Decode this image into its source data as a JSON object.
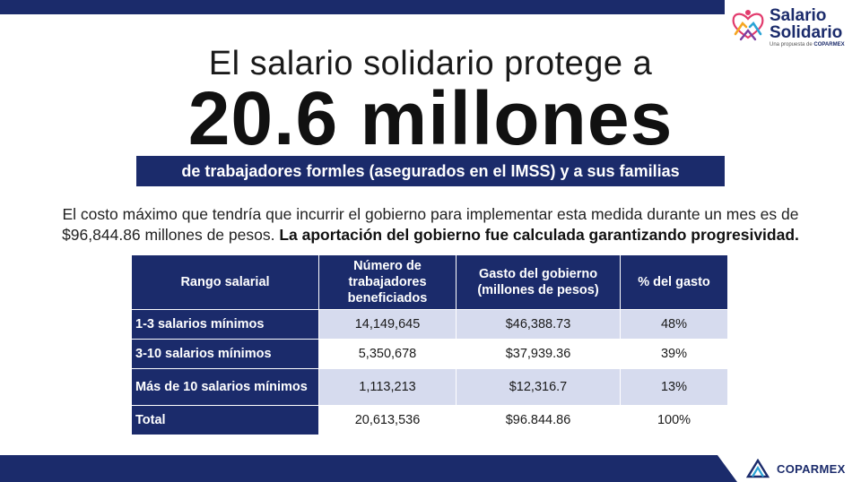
{
  "logo": {
    "title_line1": "Salario",
    "title_line2": "Solidario",
    "subtitle_prefix": "Una propuesta de",
    "subtitle_brand": "COPARMEX"
  },
  "headline": {
    "line1": "El salario solidario protege a",
    "line2": "20.6 millones",
    "band": "de trabajadores formles (asegurados en el IMSS) y a sus familias"
  },
  "body": {
    "text_regular": "El costo máximo que tendría que incurrir el gobierno para implementar esta medida durante un mes es de $96,844.86 millones de pesos.",
    "text_bold": "La aportación del gobierno fue calculada garantizando progresividad."
  },
  "table": {
    "headers": [
      "Rango salarial",
      "Número de trabajadores beneficiados",
      "Gasto del gobierno (millones de pesos)",
      "% del gasto"
    ],
    "rows": [
      [
        "1-3 salarios mínimos",
        "14,149,645",
        "$46,388.73",
        "48%"
      ],
      [
        "3-10 salarios mínimos",
        "5,350,678",
        "$37,939.36",
        "39%"
      ],
      [
        "Más de 10 salarios mínimos",
        "1,113,213",
        "$12,316.7",
        "13%"
      ],
      [
        "Total",
        "20,613,536",
        "$96.844.86",
        "100%"
      ]
    ]
  },
  "footer": {
    "brand": "COPARMEX"
  },
  "colors": {
    "navy": "#1b2b6b",
    "light_row": "#d6dbee"
  }
}
